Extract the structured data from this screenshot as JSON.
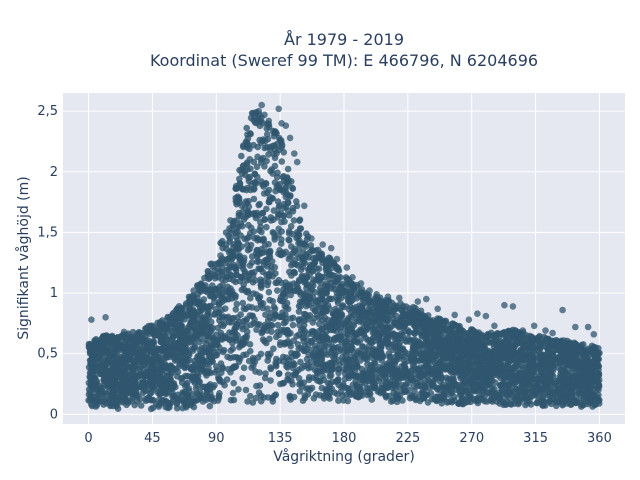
{
  "chart_data": {
    "type": "scatter",
    "title_line1": "År 1979 - 2019",
    "title_line2": "Koordinat (Sweref 99 TM): E 466796, N 6204696",
    "xlabel": "Vågriktning (grader)",
    "ylabel": "Signifikant våghöjd (m)",
    "xlim": [
      -18,
      378
    ],
    "ylim": [
      -0.08,
      2.65
    ],
    "x_ticks": [
      0,
      45,
      90,
      135,
      180,
      225,
      270,
      315,
      360
    ],
    "x_tick_labels": [
      "0",
      "45",
      "90",
      "135",
      "180",
      "225",
      "270",
      "315",
      "360"
    ],
    "y_ticks": [
      0,
      0.5,
      1,
      1.5,
      2,
      2.5
    ],
    "y_tick_labels": [
      "0",
      "0,5",
      "1",
      "1,5",
      "2",
      "2,5"
    ],
    "grid": true,
    "colors": {
      "plot_background": "#e5e8f1",
      "grid": "#ffffff",
      "marker": "#2f566e"
    },
    "envelope": {
      "direction": [
        0,
        10,
        20,
        30,
        40,
        50,
        60,
        70,
        80,
        90,
        100,
        105,
        110,
        115,
        120,
        125,
        130,
        135,
        140,
        145,
        150,
        160,
        170,
        180,
        190,
        200,
        210,
        220,
        230,
        240,
        250,
        260,
        270,
        280,
        290,
        300,
        310,
        320,
        330,
        340,
        350,
        360
      ],
      "hs_max": [
        0.58,
        0.66,
        0.64,
        0.68,
        0.72,
        0.76,
        0.85,
        0.96,
        1.12,
        1.32,
        1.62,
        2.0,
        2.35,
        2.5,
        2.52,
        2.45,
        2.35,
        2.3,
        2.05,
        1.85,
        1.55,
        1.38,
        1.3,
        1.15,
        1.06,
        0.98,
        0.95,
        0.92,
        0.88,
        0.82,
        0.78,
        0.74,
        0.7,
        0.68,
        0.67,
        0.7,
        0.66,
        0.64,
        0.62,
        0.6,
        0.58,
        0.55
      ],
      "hs_min": [
        0.05,
        0.05,
        0.04,
        0.05,
        0.04,
        0.03,
        0.04,
        0.05,
        0.05,
        0.06,
        0.07,
        0.08,
        0.08,
        0.09,
        0.1,
        0.1,
        0.1,
        0.11,
        0.1,
        0.1,
        0.1,
        0.1,
        0.1,
        0.1,
        0.1,
        0.1,
        0.1,
        0.1,
        0.1,
        0.09,
        0.09,
        0.08,
        0.08,
        0.08,
        0.07,
        0.07,
        0.07,
        0.06,
        0.06,
        0.06,
        0.06,
        0.06
      ]
    },
    "outlier_points": [
      {
        "x": 2,
        "y": 0.78
      },
      {
        "x": 12,
        "y": 0.8
      },
      {
        "x": 25,
        "y": 0.68
      },
      {
        "x": 46,
        "y": 0.72
      },
      {
        "x": 62,
        "y": 0.86
      },
      {
        "x": 74,
        "y": 1.02
      },
      {
        "x": 80,
        "y": 1.06
      },
      {
        "x": 84,
        "y": 1.18
      },
      {
        "x": 86,
        "y": 1.24
      },
      {
        "x": 93,
        "y": 1.31
      },
      {
        "x": 98,
        "y": 1.28
      },
      {
        "x": 102,
        "y": 1.38
      },
      {
        "x": 106,
        "y": 1.66
      },
      {
        "x": 108,
        "y": 1.72
      },
      {
        "x": 112,
        "y": 2.02
      },
      {
        "x": 117,
        "y": 2.45
      },
      {
        "x": 118,
        "y": 2.48
      },
      {
        "x": 120,
        "y": 2.5
      },
      {
        "x": 122,
        "y": 2.55
      },
      {
        "x": 124,
        "y": 2.47
      },
      {
        "x": 127,
        "y": 2.42
      },
      {
        "x": 131,
        "y": 2.32
      },
      {
        "x": 134,
        "y": 2.52
      },
      {
        "x": 136,
        "y": 2.4
      },
      {
        "x": 139,
        "y": 2.38
      },
      {
        "x": 142,
        "y": 2.28
      },
      {
        "x": 145,
        "y": 2.15
      },
      {
        "x": 147,
        "y": 2.08
      },
      {
        "x": 152,
        "y": 1.72
      },
      {
        "x": 157,
        "y": 1.45
      },
      {
        "x": 165,
        "y": 1.4
      },
      {
        "x": 171,
        "y": 1.37
      },
      {
        "x": 175,
        "y": 1.28
      },
      {
        "x": 182,
        "y": 1.21
      },
      {
        "x": 186,
        "y": 1.13
      },
      {
        "x": 192,
        "y": 1.08
      },
      {
        "x": 198,
        "y": 1.02
      },
      {
        "x": 203,
        "y": 0.99
      },
      {
        "x": 211,
        "y": 0.97
      },
      {
        "x": 219,
        "y": 0.96
      },
      {
        "x": 232,
        "y": 0.93
      },
      {
        "x": 238,
        "y": 0.95
      },
      {
        "x": 246,
        "y": 0.87
      },
      {
        "x": 258,
        "y": 0.82
      },
      {
        "x": 268,
        "y": 0.78
      },
      {
        "x": 274,
        "y": 0.83
      },
      {
        "x": 280,
        "y": 0.81
      },
      {
        "x": 286,
        "y": 0.73
      },
      {
        "x": 293,
        "y": 0.9
      },
      {
        "x": 299,
        "y": 0.89
      },
      {
        "x": 306,
        "y": 0.69
      },
      {
        "x": 314,
        "y": 0.73
      },
      {
        "x": 322,
        "y": 0.69
      },
      {
        "x": 327,
        "y": 0.67
      },
      {
        "x": 334,
        "y": 0.86
      },
      {
        "x": 343,
        "y": 0.72
      },
      {
        "x": 352,
        "y": 0.72
      },
      {
        "x": 356,
        "y": 0.66
      }
    ]
  }
}
